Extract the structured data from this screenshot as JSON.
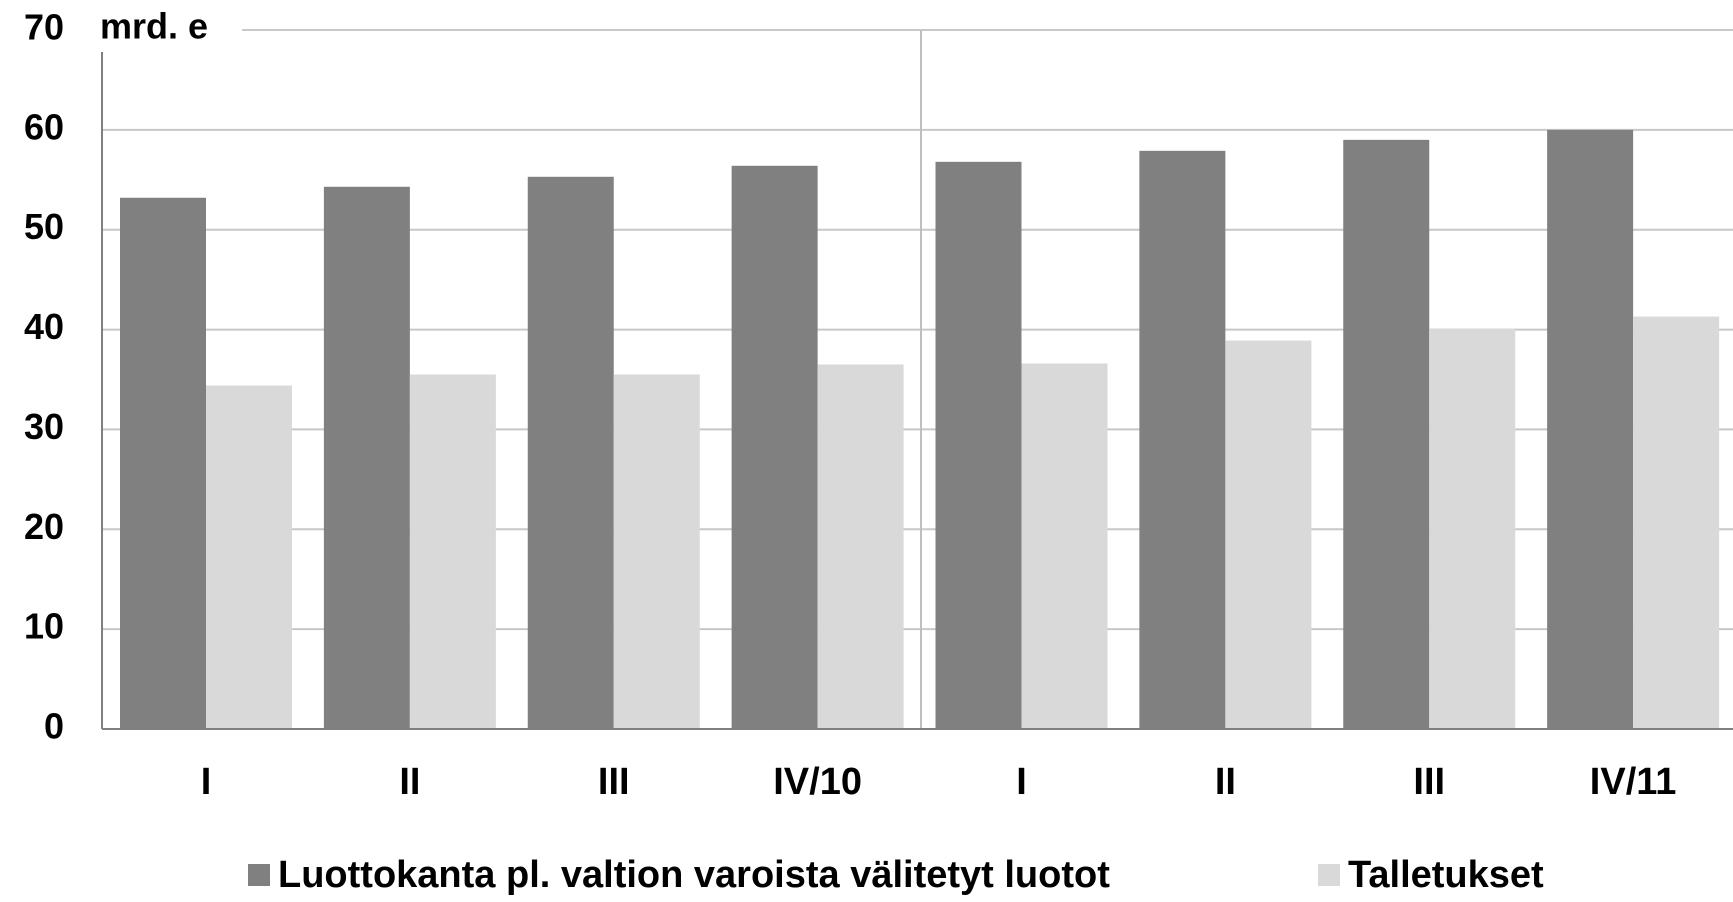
{
  "chart_data": {
    "type": "bar",
    "y_axis_label": "mrd. e",
    "categories": [
      "I",
      "II",
      "III",
      "IV/10",
      "I",
      "II",
      "III",
      "IV/11"
    ],
    "series": [
      {
        "name": "Luottokanta pl. valtion varoista välitetyt luotot",
        "color": "#808080",
        "values": [
          53.2,
          54.3,
          55.3,
          56.4,
          56.8,
          57.9,
          59.0,
          60.0
        ]
      },
      {
        "name": "Talletukset",
        "color": "#d9d9d9",
        "values": [
          34.4,
          35.5,
          35.5,
          36.5,
          36.6,
          38.9,
          40.1,
          41.3
        ]
      }
    ],
    "ylim": [
      0,
      70
    ],
    "yticks": [
      0,
      10,
      20,
      30,
      40,
      50,
      60,
      70
    ],
    "grid": true,
    "legend": "bottom"
  }
}
